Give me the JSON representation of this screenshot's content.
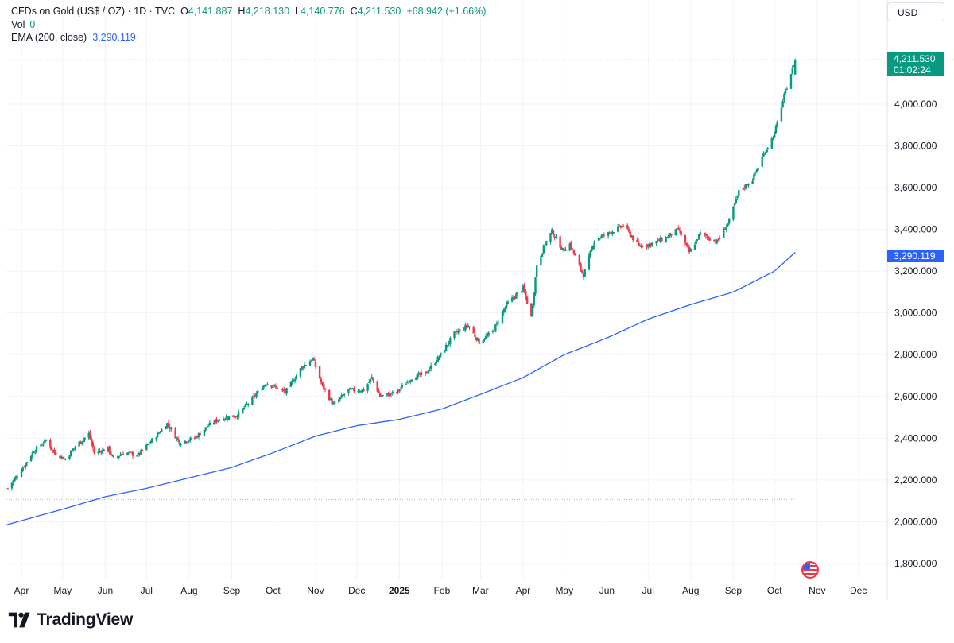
{
  "header": {
    "symbol": "CFDs on Gold (US$ / OZ) · 1D · TVC",
    "open_key": "O",
    "open": "4,141.887",
    "high_key": "H",
    "high": "4,218.130",
    "low_key": "L",
    "low": "4,140.776",
    "close_key": "C",
    "close": "4,211.530",
    "change": "+68.942 (+1.66%)",
    "vol_label": "Vol",
    "vol_value": "0",
    "ema_label": "EMA (200, close)",
    "ema_value": "3,290.119"
  },
  "currency_button": "USD",
  "price_badge": {
    "price": "4,211.530",
    "countdown": "01:02:24"
  },
  "ema_badge": "3,290.119",
  "brand": "TradingView",
  "colors": {
    "up": "#089981",
    "down": "#f23645",
    "ema": "#2962ff",
    "grid": "#f0f3fa",
    "text": "#131722"
  },
  "chart_data": {
    "type": "candlestick",
    "y_axis": {
      "ticks": [
        1800,
        2000,
        2200,
        2400,
        2600,
        2800,
        3000,
        3200,
        3400,
        3600,
        3800,
        4000
      ],
      "tick_labels": [
        "1,800.000",
        "2,000.000",
        "2,200.000",
        "2,400.000",
        "2,600.000",
        "2,800.000",
        "3,000.000",
        "3,200.000",
        "3,400.000",
        "3,600.000",
        "3,800.000",
        "4,000.000"
      ],
      "range": [
        1720,
        4270
      ]
    },
    "x_axis": {
      "range": [
        "2024-03-21",
        "2025-12-22"
      ],
      "ticks": [
        {
          "label": "Apr",
          "date": "2024-04-01"
        },
        {
          "label": "May",
          "date": "2024-05-01"
        },
        {
          "label": "Jun",
          "date": "2024-06-01"
        },
        {
          "label": "Jul",
          "date": "2024-07-01"
        },
        {
          "label": "Aug",
          "date": "2024-08-01"
        },
        {
          "label": "Sep",
          "date": "2024-09-01"
        },
        {
          "label": "Oct",
          "date": "2024-10-01"
        },
        {
          "label": "Nov",
          "date": "2024-11-01"
        },
        {
          "label": "Dec",
          "date": "2024-12-01"
        },
        {
          "label": "2025",
          "date": "2025-01-01",
          "bold": true
        },
        {
          "label": "Feb",
          "date": "2025-02-01"
        },
        {
          "label": "Mar",
          "date": "2025-03-01"
        },
        {
          "label": "Apr",
          "date": "2025-04-01"
        },
        {
          "label": "May",
          "date": "2025-05-01"
        },
        {
          "label": "Jun",
          "date": "2025-06-01"
        },
        {
          "label": "Jul",
          "date": "2025-07-01"
        },
        {
          "label": "Aug",
          "date": "2025-08-01"
        },
        {
          "label": "Sep",
          "date": "2025-09-01"
        },
        {
          "label": "Oct",
          "date": "2025-10-01"
        },
        {
          "label": "Nov",
          "date": "2025-11-01"
        },
        {
          "label": "Dec",
          "date": "2025-12-01"
        }
      ]
    },
    "close_path": [
      [
        "2024-03-22",
        2160
      ],
      [
        "2024-04-01",
        2250
      ],
      [
        "2024-04-10",
        2340
      ],
      [
        "2024-04-19",
        2390
      ],
      [
        "2024-04-25",
        2330
      ],
      [
        "2024-05-03",
        2300
      ],
      [
        "2024-05-10",
        2360
      ],
      [
        "2024-05-20",
        2420
      ],
      [
        "2024-05-24",
        2330
      ],
      [
        "2024-06-03",
        2350
      ],
      [
        "2024-06-07",
        2300
      ],
      [
        "2024-06-14",
        2330
      ],
      [
        "2024-06-25",
        2320
      ],
      [
        "2024-07-05",
        2390
      ],
      [
        "2024-07-16",
        2470
      ],
      [
        "2024-07-25",
        2380
      ],
      [
        "2024-08-05",
        2400
      ],
      [
        "2024-08-15",
        2460
      ],
      [
        "2024-08-22",
        2490
      ],
      [
        "2024-09-05",
        2510
      ],
      [
        "2024-09-12",
        2560
      ],
      [
        "2024-09-26",
        2665
      ],
      [
        "2024-10-10",
        2620
      ],
      [
        "2024-10-22",
        2740
      ],
      [
        "2024-10-30",
        2780
      ],
      [
        "2024-11-06",
        2650
      ],
      [
        "2024-11-14",
        2560
      ],
      [
        "2024-11-25",
        2630
      ],
      [
        "2024-12-06",
        2630
      ],
      [
        "2024-12-12",
        2690
      ],
      [
        "2024-12-18",
        2600
      ],
      [
        "2024-12-30",
        2620
      ],
      [
        "2025-01-10",
        2690
      ],
      [
        "2025-01-20",
        2710
      ],
      [
        "2025-01-30",
        2790
      ],
      [
        "2025-02-10",
        2900
      ],
      [
        "2025-02-20",
        2940
      ],
      [
        "2025-02-28",
        2860
      ],
      [
        "2025-03-10",
        2910
      ],
      [
        "2025-03-20",
        3040
      ],
      [
        "2025-04-01",
        3120
      ],
      [
        "2025-04-07",
        2980
      ],
      [
        "2025-04-11",
        3230
      ],
      [
        "2025-04-17",
        3330
      ],
      [
        "2025-04-22",
        3390
      ],
      [
        "2025-04-30",
        3300
      ],
      [
        "2025-05-05",
        3330
      ],
      [
        "2025-05-15",
        3180
      ],
      [
        "2025-05-23",
        3350
      ],
      [
        "2025-06-02",
        3380
      ],
      [
        "2025-06-13",
        3420
      ],
      [
        "2025-06-24",
        3320
      ],
      [
        "2025-07-03",
        3330
      ],
      [
        "2025-07-14",
        3360
      ],
      [
        "2025-07-23",
        3400
      ],
      [
        "2025-07-31",
        3290
      ],
      [
        "2025-08-08",
        3380
      ],
      [
        "2025-08-20",
        3340
      ],
      [
        "2025-08-29",
        3440
      ],
      [
        "2025-09-05",
        3580
      ],
      [
        "2025-09-15",
        3640
      ],
      [
        "2025-09-23",
        3760
      ],
      [
        "2025-10-01",
        3860
      ],
      [
        "2025-10-08",
        4040
      ],
      [
        "2025-10-16",
        4212
      ]
    ],
    "series": [
      {
        "name": "EMA (200, close)",
        "points": [
          [
            "2024-03-21",
            1985
          ],
          [
            "2024-05-01",
            2060
          ],
          [
            "2024-06-01",
            2120
          ],
          [
            "2024-07-01",
            2160
          ],
          [
            "2024-08-01",
            2210
          ],
          [
            "2024-09-01",
            2260
          ],
          [
            "2024-10-01",
            2330
          ],
          [
            "2024-11-01",
            2410
          ],
          [
            "2024-12-01",
            2460
          ],
          [
            "2025-01-01",
            2490
          ],
          [
            "2025-02-01",
            2540
          ],
          [
            "2025-03-01",
            2610
          ],
          [
            "2025-04-01",
            2690
          ],
          [
            "2025-05-01",
            2800
          ],
          [
            "2025-06-01",
            2880
          ],
          [
            "2025-07-01",
            2970
          ],
          [
            "2025-08-01",
            3040
          ],
          [
            "2025-09-01",
            3100
          ],
          [
            "2025-10-01",
            3200
          ],
          [
            "2025-10-16",
            3290.119
          ]
        ]
      }
    ],
    "reference_lines": [
      {
        "style": "dotted",
        "value": 4211.53,
        "to": "right-edge"
      },
      {
        "style": "dotted",
        "value": 2107,
        "from": "2024-03-21",
        "to": "2025-10-16"
      }
    ]
  }
}
